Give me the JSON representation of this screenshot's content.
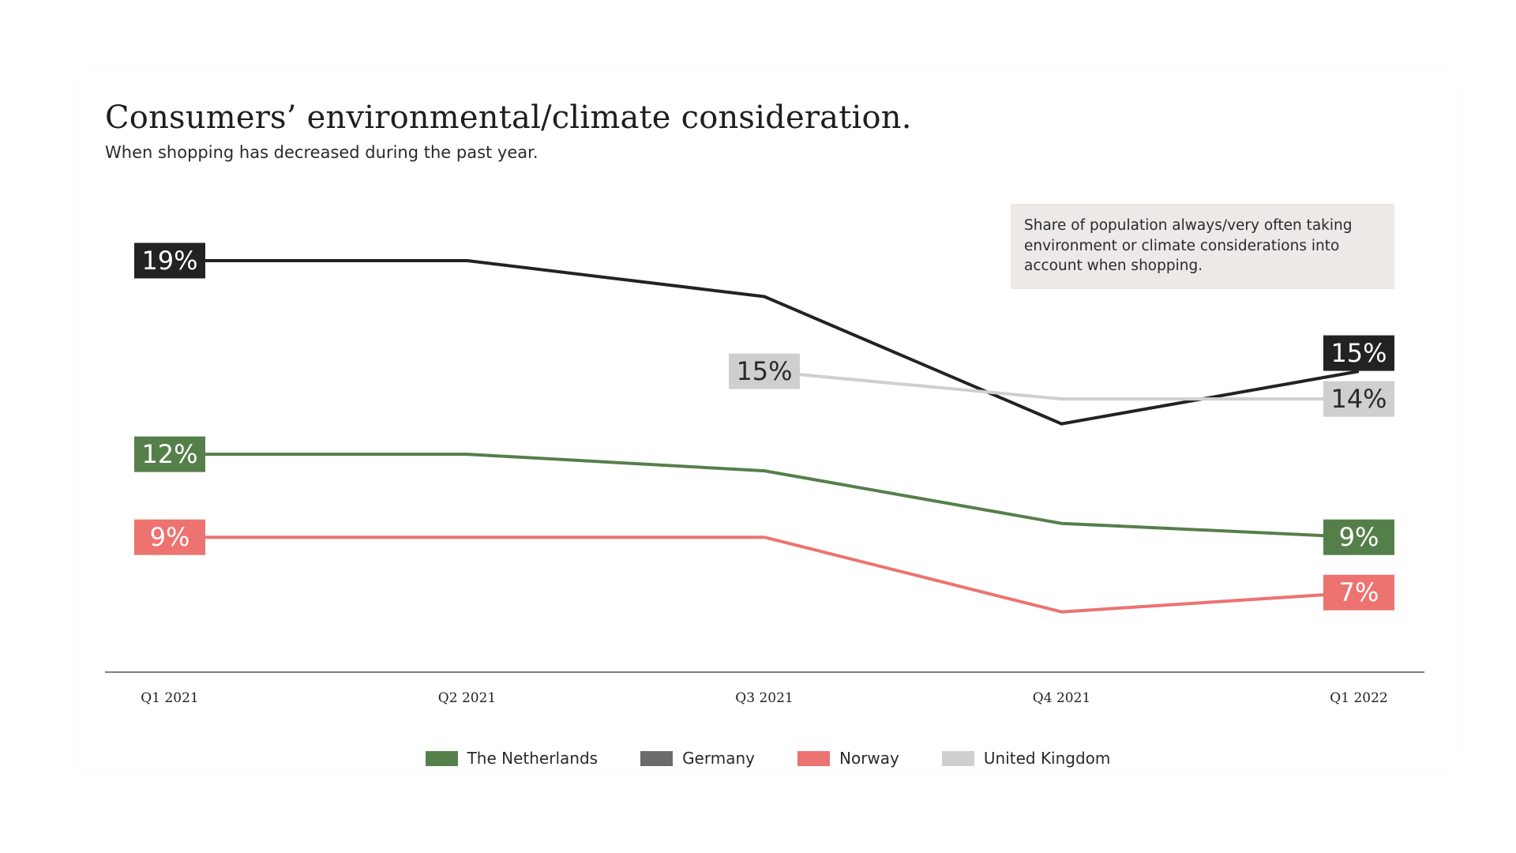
{
  "title": "Consumers’ environmental/climate consideration.",
  "subtitle": "When shopping has decreased during the past year.",
  "note": "Share of population always/very often taking environment or climate considerations into account when shopping.",
  "chart_data": {
    "type": "line",
    "title": "Consumers’ environmental/climate consideration.",
    "subtitle": "When shopping has decreased during the past year.",
    "xlabel": "",
    "ylabel": "",
    "ylim": [
      6,
      20
    ],
    "grid": false,
    "legend_position": "bottom-center",
    "categories": [
      "Q1 2021",
      "Q2 2021",
      "Q3 2021",
      "Q4 2021",
      "Q1 2022"
    ],
    "series": [
      {
        "name": "Germany",
        "color": "#222222",
        "legend_color": "#6b6b6b",
        "text_color": "#ffffff",
        "values": [
          19,
          19,
          17.7,
          13.1,
          15
        ],
        "labels": [
          {
            "index": 0,
            "text": "19%"
          },
          {
            "index": 4,
            "text": "15%",
            "offset": "up"
          }
        ]
      },
      {
        "name": "United Kingdom",
        "color": "#cfcfcf",
        "legend_color": "#cfcfcf",
        "text_color": "#2a2a2a",
        "values": [
          null,
          null,
          15,
          14,
          14
        ],
        "labels": [
          {
            "index": 2,
            "text": "15%"
          },
          {
            "index": 4,
            "text": "14%"
          }
        ]
      },
      {
        "name": "The Netherlands",
        "color": "#557f4a",
        "legend_color": "#557f4a",
        "text_color": "#ffffff",
        "values": [
          12,
          12,
          11.4,
          9.5,
          9
        ],
        "labels": [
          {
            "index": 0,
            "text": "12%"
          },
          {
            "index": 4,
            "text": "9%"
          }
        ]
      },
      {
        "name": "Norway",
        "color": "#ec7370",
        "legend_color": "#ec7370",
        "text_color": "#ffffff",
        "values": [
          9,
          9,
          9,
          6.3,
          7
        ],
        "labels": [
          {
            "index": 0,
            "text": "9%"
          },
          {
            "index": 4,
            "text": "7%"
          }
        ]
      }
    ],
    "legend_order": [
      "The Netherlands",
      "Germany",
      "Norway",
      "United Kingdom"
    ]
  }
}
